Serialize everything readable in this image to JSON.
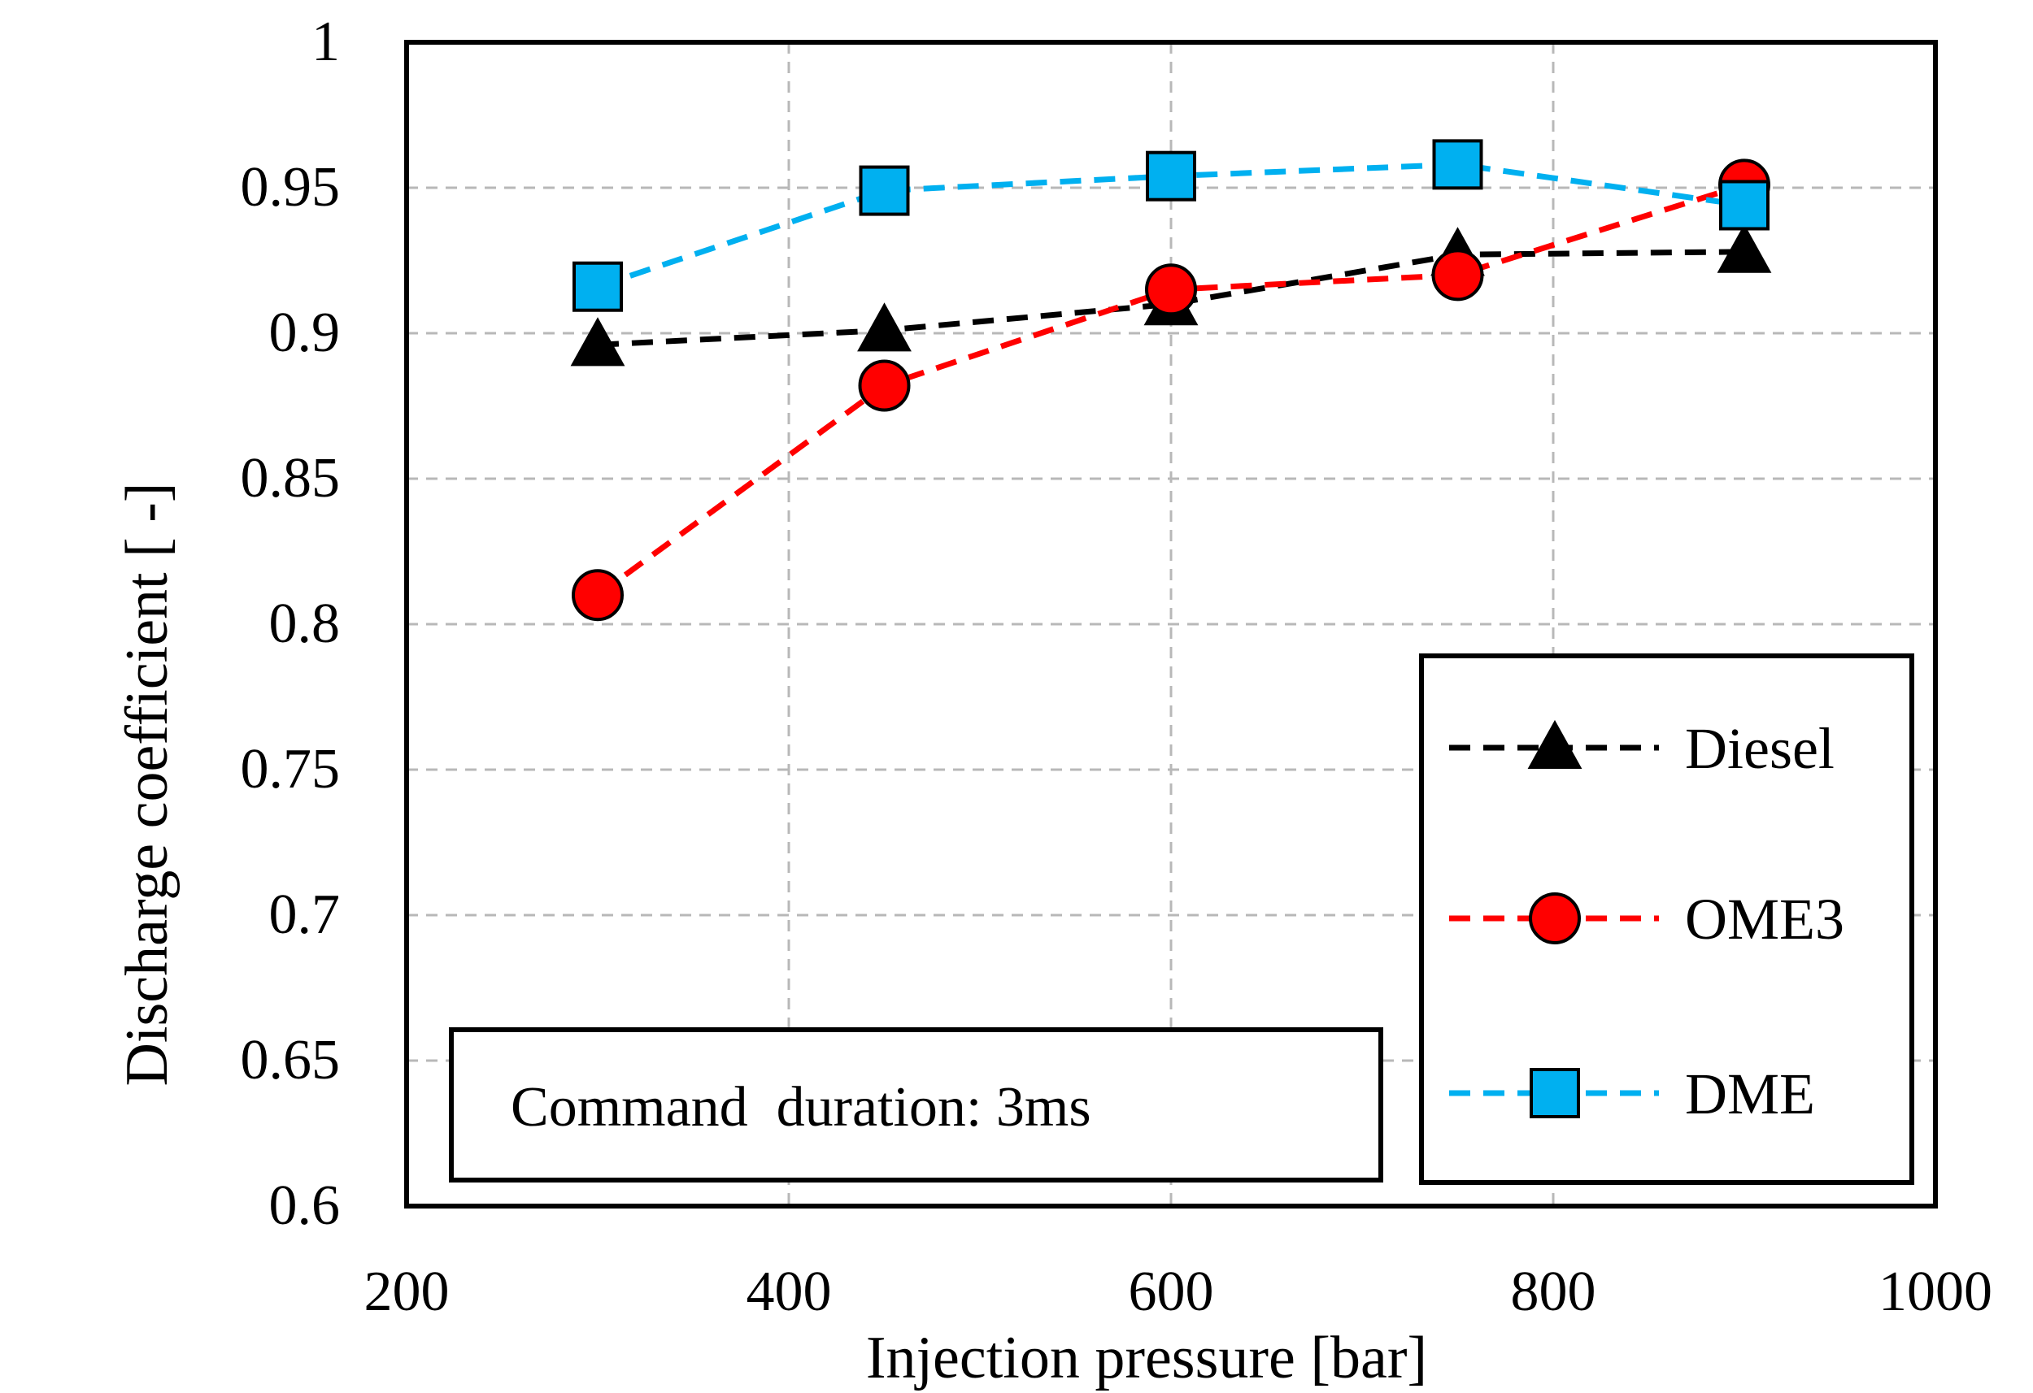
{
  "chart_data": {
    "type": "line",
    "title": "",
    "xlabel": "Injection pressure [bar]",
    "ylabel": "Discharge coefficient [ -]",
    "xlim": [
      200,
      1000
    ],
    "ylim": [
      0.6,
      1
    ],
    "x_ticks": [
      200,
      400,
      600,
      800,
      1000
    ],
    "x_tick_labels": [
      "200",
      "400",
      "600",
      "800",
      "1000"
    ],
    "y_ticks": [
      0.6,
      0.65,
      0.7,
      0.75,
      0.8,
      0.85,
      0.9,
      0.95,
      1
    ],
    "y_tick_labels": [
      "0.6",
      "0.65",
      "0.7",
      "0.75",
      "0.8",
      "0.85",
      "0.9",
      "0.95",
      "1"
    ],
    "grid": true,
    "legend_position": "bottom-right",
    "series": [
      {
        "name": "Diesel",
        "marker": "triangle",
        "color": "#000000",
        "marker_fill": "#000000",
        "x": [
          300,
          450,
          600,
          750,
          900
        ],
        "y": [
          0.896,
          0.901,
          0.91,
          0.927,
          0.928
        ]
      },
      {
        "name": "OME3",
        "marker": "circle",
        "color": "#ff0000",
        "marker_fill": "#ff0000",
        "x": [
          300,
          450,
          600,
          750,
          900
        ],
        "y": [
          0.81,
          0.882,
          0.915,
          0.92,
          0.951
        ]
      },
      {
        "name": "DME",
        "marker": "square",
        "color": "#00b0f0",
        "marker_fill": "#00b0f0",
        "x": [
          300,
          450,
          600,
          750,
          900
        ],
        "y": [
          0.916,
          0.949,
          0.954,
          0.958,
          0.944
        ]
      }
    ],
    "annotation": "Command  duration: 3ms"
  }
}
